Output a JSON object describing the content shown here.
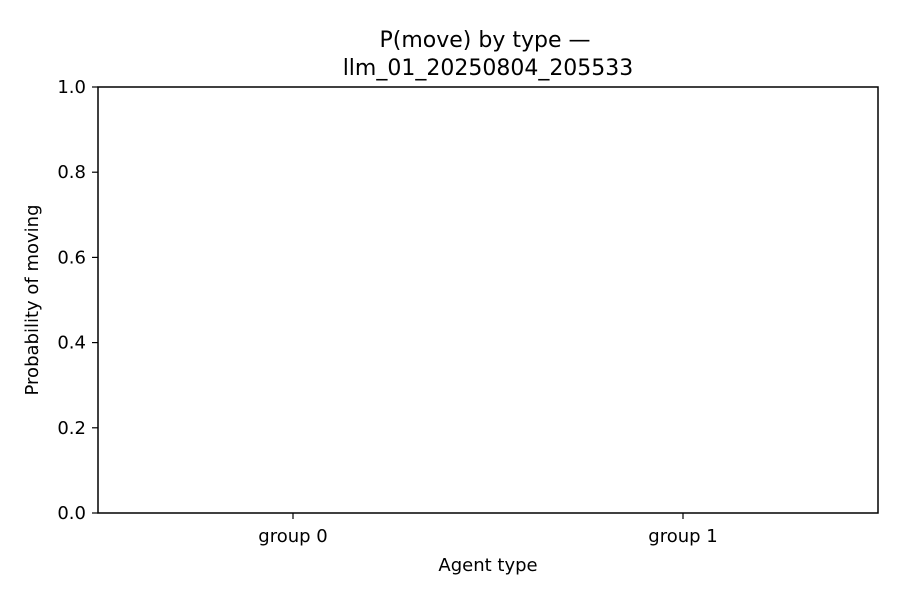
{
  "chart_data": {
    "type": "bar",
    "title_lines": [
      "P(move) by type —",
      "llm_01_20250804_205533"
    ],
    "xlabel": "Agent type",
    "ylabel": "Probability of moving",
    "categories": [
      "group 0",
      "group 1"
    ],
    "values": [
      0,
      0
    ],
    "ylim": [
      0,
      1
    ],
    "yticks": [
      "0.0",
      "0.2",
      "0.4",
      "0.6",
      "0.8",
      "1.0"
    ],
    "grid": false,
    "legend": "none"
  }
}
